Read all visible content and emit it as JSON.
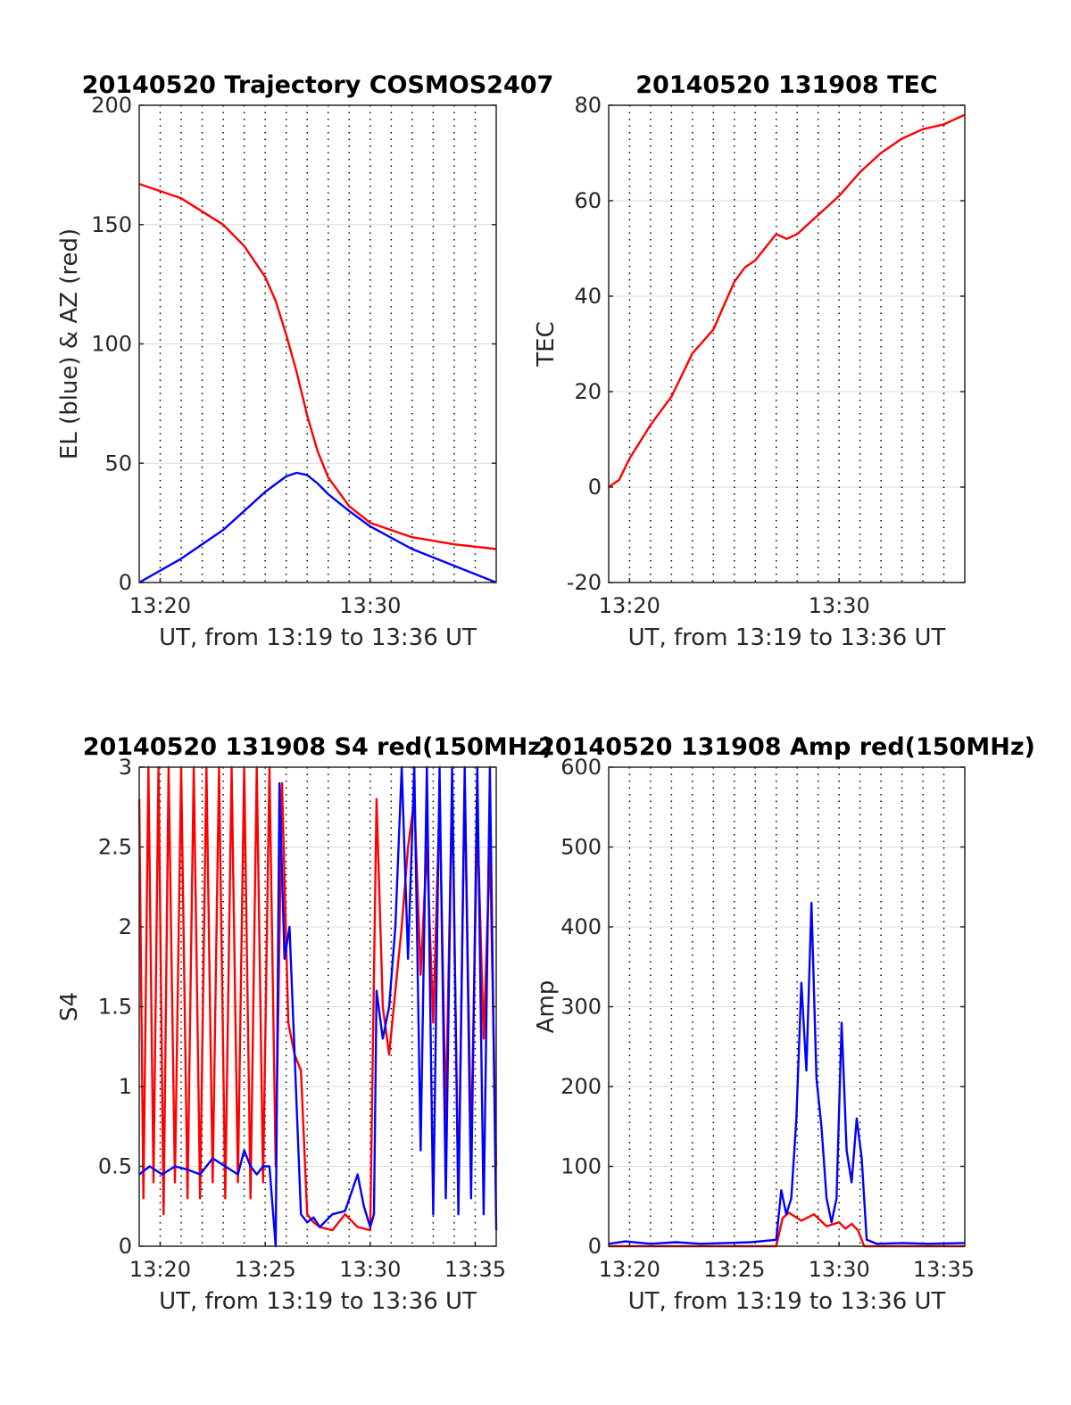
{
  "figure": {
    "colors": {
      "red": "#ff0000",
      "blue": "#0000ff",
      "grid": "#dcdcdc",
      "dotgrid": "#000000",
      "axis": "#262626"
    }
  },
  "chart_data": [
    {
      "type": "line",
      "title": "20140520 Trajectory COSMOS2407",
      "xlabel": "UT, from 13:19 to 13:36 UT",
      "ylabel": "EL (blue) & AZ (red)",
      "xlim": [
        13.3167,
        13.6
      ],
      "ylim": [
        0,
        200
      ],
      "xticks": [
        {
          "v": 13.3333,
          "label": "13:20"
        },
        {
          "v": 13.5,
          "label": "13:30"
        }
      ],
      "yticks": [
        {
          "v": 0,
          "label": "0"
        },
        {
          "v": 50,
          "label": "50"
        },
        {
          "v": 100,
          "label": "100"
        },
        {
          "v": 150,
          "label": "150"
        },
        {
          "v": 200,
          "label": "200"
        }
      ],
      "series": [
        {
          "color": "#ff0000",
          "x": [
            13.3167,
            13.35,
            13.3833,
            13.4,
            13.4167,
            13.425,
            13.4333,
            13.4417,
            13.45,
            13.4583,
            13.4667,
            13.4833,
            13.5,
            13.5333,
            13.5667,
            13.6
          ],
          "y": [
            167,
            161,
            150,
            141,
            128,
            118,
            104,
            88,
            70,
            55,
            44,
            32,
            25,
            19,
            16,
            14
          ]
        },
        {
          "color": "#0000ff",
          "x": [
            13.3167,
            13.35,
            13.3833,
            13.4,
            13.4167,
            13.4333,
            13.4417,
            13.45,
            13.4583,
            13.4667,
            13.4833,
            13.5,
            13.5333,
            13.5667,
            13.6
          ],
          "y": [
            0,
            10,
            22,
            30,
            38,
            44.5,
            46,
            45,
            41.5,
            37,
            30,
            23.5,
            14,
            7,
            0
          ]
        }
      ]
    },
    {
      "type": "line",
      "title": "20140520 131908 TEC",
      "xlabel": "UT, from 13:19 to 13:36 UT",
      "ylabel": "TEC",
      "xlim": [
        13.3167,
        13.6
      ],
      "ylim": [
        -20,
        80
      ],
      "xticks": [
        {
          "v": 13.3333,
          "label": "13:20"
        },
        {
          "v": 13.5,
          "label": "13:30"
        }
      ],
      "yticks": [
        {
          "v": -20,
          "label": "-20"
        },
        {
          "v": 0,
          "label": "0"
        },
        {
          "v": 20,
          "label": "20"
        },
        {
          "v": 40,
          "label": "40"
        },
        {
          "v": 60,
          "label": "60"
        },
        {
          "v": 80,
          "label": "80"
        }
      ],
      "series": [
        {
          "color": "#ff0000",
          "x": [
            13.3167,
            13.325,
            13.3333,
            13.35,
            13.3667,
            13.3833,
            13.4,
            13.4167,
            13.425,
            13.4333,
            13.45,
            13.4583,
            13.4667,
            13.475,
            13.4833,
            13.5,
            13.5167,
            13.5333,
            13.55,
            13.5667,
            13.5833,
            13.6
          ],
          "y": [
            0,
            1.5,
            6,
            13,
            19,
            28,
            33,
            43,
            46,
            47.5,
            53,
            52,
            53,
            55,
            57,
            61,
            66,
            70,
            73,
            75,
            76,
            78
          ]
        }
      ]
    },
    {
      "type": "line",
      "title": "20140520 131908 S4 red(150MHz)",
      "xlabel": "UT, from 13:19 to 13:36 UT",
      "ylabel": "S4",
      "xlim": [
        13.3167,
        13.6
      ],
      "ylim": [
        0,
        3
      ],
      "xticks": [
        {
          "v": 13.3333,
          "label": "13:20"
        },
        {
          "v": 13.4167,
          "label": "13:25"
        },
        {
          "v": 13.5,
          "label": "13:30"
        },
        {
          "v": 13.5833,
          "label": "13:35"
        }
      ],
      "yticks": [
        {
          "v": 0,
          "label": "0"
        },
        {
          "v": 0.5,
          "label": "0.5"
        },
        {
          "v": 1,
          "label": "1"
        },
        {
          "v": 1.5,
          "label": "1.5"
        },
        {
          "v": 2,
          "label": "2"
        },
        {
          "v": 2.5,
          "label": "2.5"
        },
        {
          "v": 3,
          "label": "3"
        }
      ],
      "series": [
        {
          "color": "#ff0000",
          "x": [
            13.3167,
            13.32,
            13.324,
            13.328,
            13.332,
            13.336,
            13.34,
            13.345,
            13.35,
            13.355,
            13.36,
            13.365,
            13.37,
            13.375,
            13.38,
            13.385,
            13.39,
            13.395,
            13.4,
            13.405,
            13.41,
            13.415,
            13.42,
            13.425,
            13.43,
            13.435,
            13.44,
            13.445,
            13.45,
            13.455,
            13.46,
            13.47,
            13.48,
            13.49,
            13.5,
            13.505,
            13.51,
            13.515,
            13.52,
            13.525,
            13.53,
            13.535,
            13.54,
            13.545,
            13.55,
            13.555,
            13.56,
            13.565,
            13.57,
            13.575,
            13.58,
            13.585,
            13.59,
            13.595,
            13.6
          ],
          "y": [
            2.8,
            0.3,
            3,
            0.4,
            3,
            0.2,
            3,
            0.4,
            3,
            0.3,
            3,
            0.3,
            3,
            0.4,
            3,
            0.3,
            3,
            0.4,
            3,
            0.3,
            3,
            0.4,
            3,
            0.5,
            2.9,
            1.4,
            1.2,
            1.1,
            0.2,
            0.15,
            0.12,
            0.1,
            0.2,
            0.12,
            0.1,
            2.8,
            1.5,
            1.2,
            1.6,
            2.0,
            2.5,
            2.8,
            1.7,
            2.5,
            1.4,
            2.8,
            0.8,
            2.9,
            0.3,
            2.9,
            0.6,
            2.7,
            1.3,
            2.5,
            0.5
          ]
        },
        {
          "color": "#0000ff",
          "x": [
            13.3167,
            13.325,
            13.335,
            13.345,
            13.355,
            13.365,
            13.375,
            13.385,
            13.395,
            13.4,
            13.405,
            13.41,
            13.415,
            13.42,
            13.425,
            13.428,
            13.432,
            13.436,
            13.44,
            13.445,
            13.45,
            13.455,
            13.46,
            13.47,
            13.48,
            13.49,
            13.495,
            13.5,
            13.503,
            13.505,
            13.51,
            13.515,
            13.52,
            13.525,
            13.53,
            13.535,
            13.54,
            13.545,
            13.55,
            13.555,
            13.56,
            13.565,
            13.57,
            13.575,
            13.58,
            13.585,
            13.59,
            13.595,
            13.6
          ],
          "y": [
            0.45,
            0.5,
            0.45,
            0.5,
            0.48,
            0.45,
            0.55,
            0.5,
            0.45,
            0.6,
            0.5,
            0.45,
            0.5,
            0.5,
            0,
            2.9,
            1.8,
            2.0,
            1.2,
            0.2,
            0.15,
            0.18,
            0.12,
            0.2,
            0.22,
            0.45,
            0.25,
            0.12,
            0.2,
            1.6,
            1.3,
            1.5,
            2.0,
            3,
            1.8,
            3,
            0.6,
            3,
            0.2,
            3,
            0.3,
            3,
            0.2,
            3,
            0.3,
            3,
            0.2,
            3,
            0.1
          ]
        }
      ]
    },
    {
      "type": "line",
      "title": "20140520 131908 Amp red(150MHz)",
      "xlabel": "UT, from 13:19 to 13:36 UT",
      "ylabel": "Amp",
      "xlim": [
        13.3167,
        13.6
      ],
      "ylim": [
        0,
        600
      ],
      "xticks": [
        {
          "v": 13.3333,
          "label": "13:20"
        },
        {
          "v": 13.4167,
          "label": "13:25"
        },
        {
          "v": 13.5,
          "label": "13:30"
        },
        {
          "v": 13.5833,
          "label": "13:35"
        }
      ],
      "yticks": [
        {
          "v": 0,
          "label": "0"
        },
        {
          "v": 100,
          "label": "100"
        },
        {
          "v": 200,
          "label": "200"
        },
        {
          "v": 300,
          "label": "300"
        },
        {
          "v": 400,
          "label": "400"
        },
        {
          "v": 500,
          "label": "500"
        },
        {
          "v": 600,
          "label": "600"
        }
      ],
      "series": [
        {
          "color": "#ff0000",
          "x": [
            13.3167,
            13.35,
            13.4,
            13.45,
            13.455,
            13.46,
            13.47,
            13.48,
            13.49,
            13.5,
            13.505,
            13.51,
            13.515,
            13.52,
            13.6
          ],
          "y": [
            0,
            0,
            0,
            0,
            35,
            42,
            32,
            40,
            25,
            30,
            22,
            28,
            20,
            0,
            0
          ]
        },
        {
          "color": "#0000ff",
          "x": [
            13.3167,
            13.33,
            13.35,
            13.37,
            13.39,
            13.41,
            13.43,
            13.45,
            13.454,
            13.458,
            13.462,
            13.466,
            13.47,
            13.474,
            13.478,
            13.482,
            13.486,
            13.49,
            13.494,
            13.498,
            13.502,
            13.506,
            13.51,
            13.514,
            13.518,
            13.522,
            13.53,
            13.55,
            13.57,
            13.6
          ],
          "y": [
            3,
            6,
            3,
            5,
            3,
            4,
            5,
            8,
            70,
            40,
            60,
            160,
            330,
            220,
            430,
            210,
            150,
            60,
            30,
            60,
            280,
            120,
            80,
            160,
            110,
            8,
            3,
            4,
            3,
            4
          ]
        }
      ]
    }
  ]
}
